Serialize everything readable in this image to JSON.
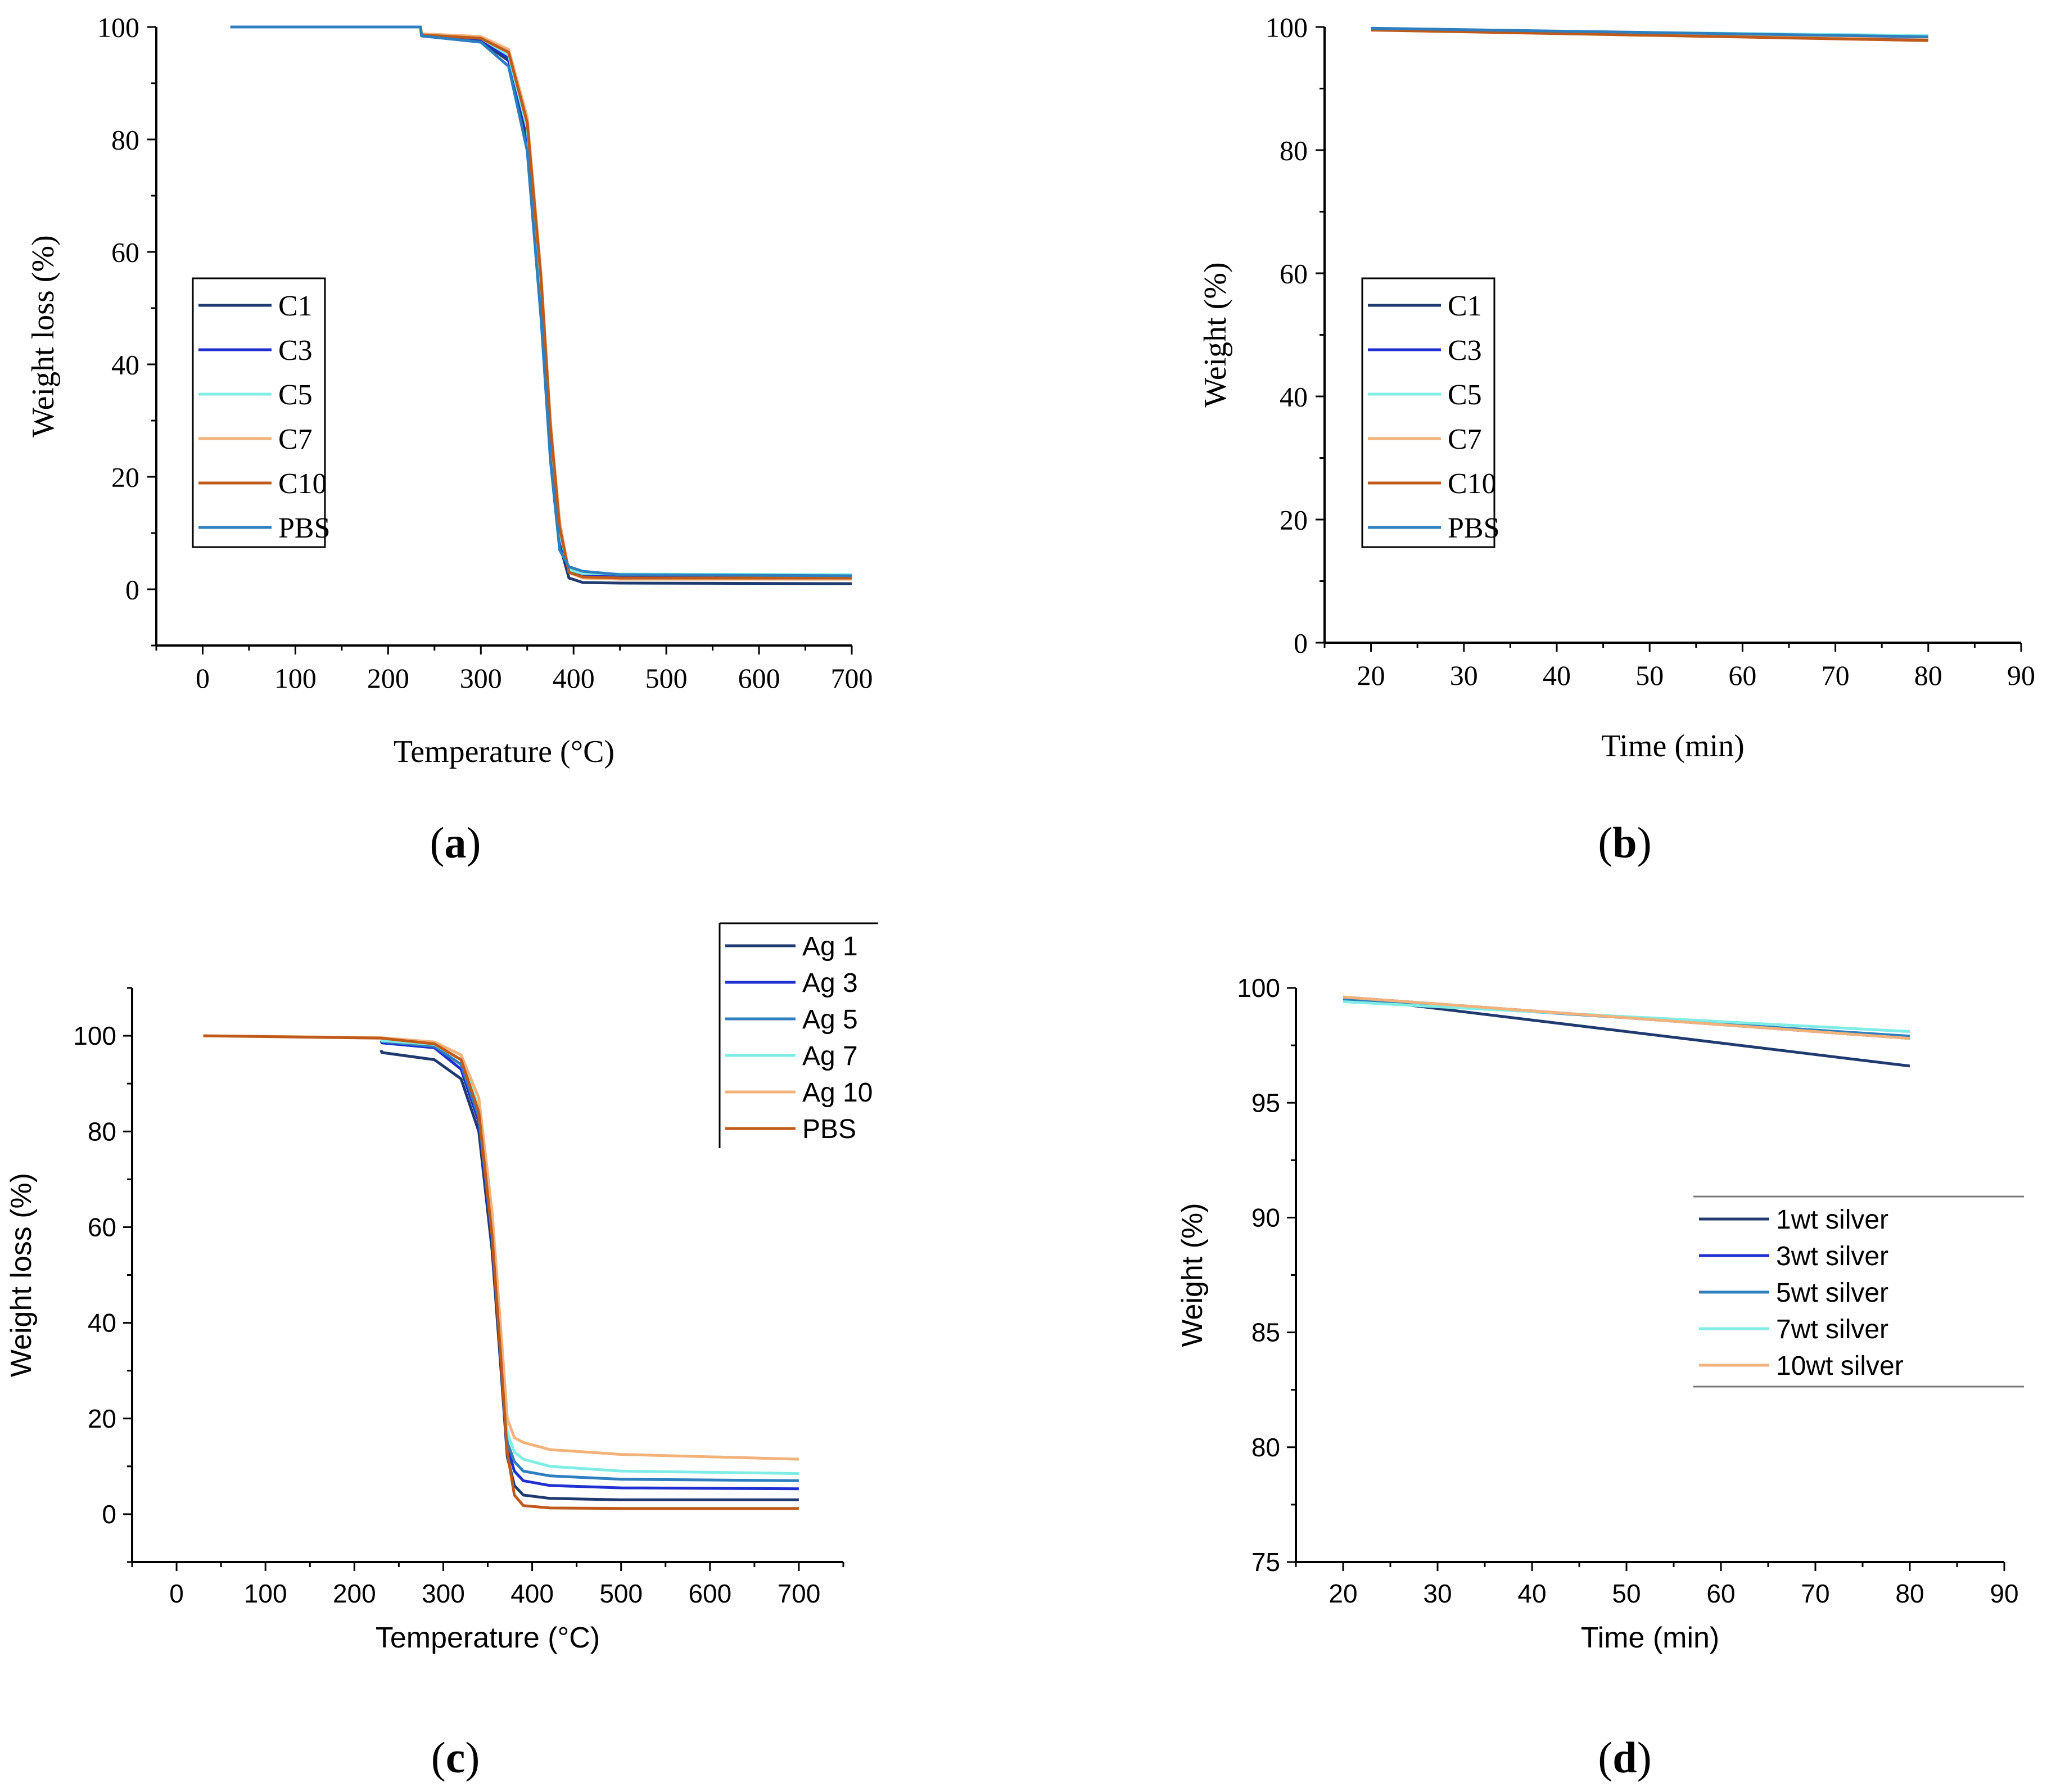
{
  "chart_data": [
    {
      "type": "line",
      "panel": "(a)",
      "font": "serif",
      "xlabel": "Temperature (°C)",
      "ylabel": "Weight loss (%)",
      "xlim": [
        -50,
        700
      ],
      "ylim": [
        -10,
        100
      ],
      "xticks": [
        0,
        100,
        200,
        300,
        400,
        500,
        600,
        700
      ],
      "yticks": [
        0,
        20,
        40,
        60,
        80,
        100
      ],
      "legend_position": "middle-left",
      "series": [
        {
          "name": "C1",
          "color": "#1f3a6e",
          "x": [
            30,
            235,
            236,
            300,
            330,
            350,
            365,
            375,
            385,
            395,
            410,
            450,
            700
          ],
          "y": [
            100,
            100,
            98.5,
            97.5,
            94,
            80,
            50,
            25,
            8,
            2,
            1.2,
            1.1,
            1.0
          ]
        },
        {
          "name": "C3",
          "color": "#1f2fd0",
          "x": [
            30,
            235,
            236,
            300,
            330,
            350,
            365,
            375,
            385,
            395,
            410,
            450,
            700
          ],
          "y": [
            100,
            100,
            98.5,
            97.7,
            94.5,
            81,
            51,
            26,
            9,
            3,
            2.6,
            2.5,
            2.4
          ]
        },
        {
          "name": "C5",
          "color": "#7fece6",
          "x": [
            30,
            235,
            236,
            300,
            330,
            350,
            365,
            375,
            385,
            395,
            410,
            450,
            700
          ],
          "y": [
            100,
            100,
            98.7,
            98,
            95,
            82,
            53,
            27,
            10,
            3.5,
            2.8,
            2.7,
            2.6
          ]
        },
        {
          "name": "C7",
          "color": "#f2b27a",
          "x": [
            30,
            235,
            236,
            300,
            330,
            350,
            365,
            375,
            385,
            395,
            410,
            450,
            700
          ],
          "y": [
            100,
            100,
            98.8,
            98.3,
            96,
            84,
            56,
            30,
            12,
            3,
            2,
            1.8,
            1.8
          ]
        },
        {
          "name": "C10",
          "color": "#c05a1a",
          "x": [
            30,
            235,
            236,
            300,
            330,
            350,
            365,
            375,
            385,
            395,
            410,
            450,
            700
          ],
          "y": [
            100,
            100,
            98.6,
            98,
            95.5,
            83,
            55,
            29,
            11,
            3,
            2.2,
            2.0,
            2.0
          ]
        },
        {
          "name": "PBS",
          "color": "#2d7fc0",
          "x": [
            30,
            235,
            236,
            300,
            330,
            350,
            365,
            375,
            385,
            395,
            410,
            450,
            700
          ],
          "y": [
            100,
            100,
            98.4,
            97.3,
            93,
            78,
            48,
            23,
            7,
            4,
            3.2,
            2.6,
            2.4
          ]
        }
      ]
    },
    {
      "type": "line",
      "panel": "(b)",
      "font": "serif",
      "xlabel": "Time (min)",
      "ylabel": "Weight (%)",
      "xlim": [
        15,
        90
      ],
      "ylim": [
        0,
        100
      ],
      "xticks": [
        20,
        30,
        40,
        50,
        60,
        70,
        80,
        90
      ],
      "yticks": [
        0,
        20,
        40,
        60,
        80,
        100
      ],
      "legend_position": "middle-left",
      "series": [
        {
          "name": "C1",
          "color": "#1f3a6e",
          "x": [
            20,
            80
          ],
          "y": [
            99.7,
            98.1
          ]
        },
        {
          "name": "C3",
          "color": "#1f2fd0",
          "x": [
            20,
            80
          ],
          "y": [
            99.7,
            98.2
          ]
        },
        {
          "name": "C5",
          "color": "#7fece6",
          "x": [
            20,
            80
          ],
          "y": [
            99.6,
            98.6
          ]
        },
        {
          "name": "C7",
          "color": "#f2b27a",
          "x": [
            20,
            80
          ],
          "y": [
            99.6,
            98.3
          ]
        },
        {
          "name": "C10",
          "color": "#c05a1a",
          "x": [
            20,
            80
          ],
          "y": [
            99.5,
            97.8
          ]
        },
        {
          "name": "PBS",
          "color": "#2d7fc0",
          "x": [
            20,
            80
          ],
          "y": [
            99.8,
            98.4
          ]
        }
      ]
    },
    {
      "type": "line",
      "panel": "(c)",
      "font": "sans",
      "xlabel": "Temperature (°C)",
      "ylabel": "Weight loss (%)",
      "xlim": [
        -50,
        750
      ],
      "ylim": [
        -10,
        110
      ],
      "xticks": [
        0,
        100,
        200,
        300,
        400,
        500,
        600,
        700
      ],
      "yticks": [
        0,
        20,
        40,
        60,
        80,
        100
      ],
      "legend_position": "top-right",
      "series": [
        {
          "name": "Ag 1",
          "color": "#1f3a6e",
          "x": [
            230,
            231,
            290,
            320,
            340,
            355,
            365,
            372,
            380,
            390,
            420,
            500,
            700
          ],
          "y": [
            97,
            96.5,
            95,
            91,
            80,
            55,
            30,
            12,
            6,
            4,
            3.3,
            3,
            3
          ]
        },
        {
          "name": "Ag 3",
          "color": "#1f2fd0",
          "x": [
            230,
            231,
            290,
            320,
            340,
            355,
            365,
            372,
            380,
            390,
            420,
            500,
            700
          ],
          "y": [
            99,
            98.5,
            97.5,
            93,
            82,
            57,
            32,
            14,
            9,
            7,
            6,
            5.5,
            5.3
          ]
        },
        {
          "name": "Ag 5",
          "color": "#2d7fc0",
          "x": [
            230,
            231,
            290,
            320,
            340,
            355,
            365,
            372,
            380,
            390,
            420,
            500,
            700
          ],
          "y": [
            99,
            98.8,
            97.8,
            94,
            83,
            58,
            33,
            15,
            11,
            9,
            8,
            7.3,
            7
          ]
        },
        {
          "name": "Ag 7",
          "color": "#7fece6",
          "x": [
            230,
            231,
            290,
            320,
            340,
            355,
            365,
            372,
            380,
            390,
            420,
            500,
            700
          ],
          "y": [
            99.2,
            99,
            98.2,
            95,
            85,
            60,
            35,
            17,
            13,
            11.5,
            10,
            9,
            8.5
          ]
        },
        {
          "name": "Ag 10",
          "color": "#f2b27a",
          "x": [
            30,
            230,
            290,
            320,
            340,
            355,
            365,
            372,
            380,
            390,
            420,
            500,
            700
          ],
          "y": [
            100,
            99.6,
            98.7,
            96,
            87,
            63,
            38,
            20,
            16,
            15,
            13.5,
            12.5,
            11.5
          ]
        },
        {
          "name": "PBS",
          "color": "#c05a1a",
          "x": [
            30,
            230,
            290,
            320,
            340,
            355,
            365,
            372,
            380,
            390,
            420,
            500,
            700
          ],
          "y": [
            100,
            99.5,
            98.3,
            95,
            84,
            58,
            32,
            13,
            4,
            1.8,
            1.3,
            1.2,
            1.2
          ]
        }
      ]
    },
    {
      "type": "line",
      "panel": "(d)",
      "font": "sans",
      "xlabel": "Time (min)",
      "ylabel": "Weight (%)",
      "xlim": [
        15,
        90
      ],
      "ylim": [
        75,
        100
      ],
      "xticks": [
        20,
        30,
        40,
        50,
        60,
        70,
        80,
        90
      ],
      "yticks": [
        75,
        80,
        85,
        90,
        95,
        100
      ],
      "legend_position": "lower-right",
      "series": [
        {
          "name": "1wt silver",
          "color": "#1f3a6e",
          "x": [
            20,
            80
          ],
          "y": [
            99.6,
            96.6
          ]
        },
        {
          "name": "3wt silver",
          "color": "#1f2fd0",
          "x": [
            20,
            80
          ],
          "y": [
            99.6,
            97.8
          ]
        },
        {
          "name": "5wt silver",
          "color": "#2d7fc0",
          "x": [
            20,
            80
          ],
          "y": [
            99.5,
            97.9
          ]
        },
        {
          "name": "7wt silver",
          "color": "#7fece6",
          "x": [
            20,
            80
          ],
          "y": [
            99.4,
            98.1
          ]
        },
        {
          "name": "10wt silver",
          "color": "#f2b27a",
          "x": [
            20,
            80
          ],
          "y": [
            99.6,
            97.8
          ]
        }
      ]
    }
  ]
}
